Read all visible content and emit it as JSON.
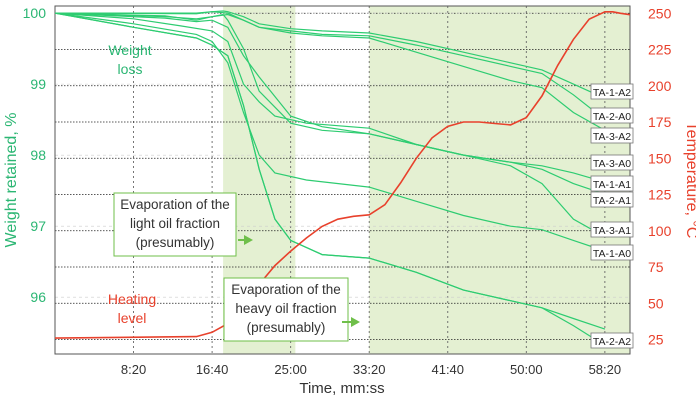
{
  "chart_data": {
    "type": "line",
    "xlabel": "Time, mm:ss",
    "ylabel_left": "Weight retained, %",
    "ylabel_right": "Temperature, °C",
    "xlim": [
      0,
      3660
    ],
    "ylim_left": [
      95.2,
      100.1
    ],
    "ylim_right": [
      15,
      255
    ],
    "x_ticks": [
      {
        "value": 500,
        "label": "8:20"
      },
      {
        "value": 1000,
        "label": "16:40"
      },
      {
        "value": 1500,
        "label": "25:00"
      },
      {
        "value": 2000,
        "label": "33:20"
      },
      {
        "value": 2500,
        "label": "41:40"
      },
      {
        "value": 3000,
        "label": "50:00"
      },
      {
        "value": 3500,
        "label": "58:20"
      }
    ],
    "y_left_ticks": [
      96,
      97,
      98,
      99,
      100
    ],
    "y_right_ticks": [
      25,
      50,
      75,
      100,
      125,
      150,
      175,
      200,
      225,
      250
    ],
    "shaded_regions": [
      [
        1070,
        1530
      ],
      [
        2000,
        3660
      ]
    ],
    "colors": {
      "weight": "#2ecc71",
      "temperature": "#e8412c",
      "shade": "#e4f0d2"
    },
    "temperature": {
      "x": [
        0,
        900,
        1000,
        1100,
        1200,
        1300,
        1400,
        1500,
        1600,
        1700,
        1800,
        1900,
        2000,
        2100,
        2200,
        2300,
        2400,
        2500,
        2600,
        2700,
        2800,
        2900,
        3000,
        3100,
        3200,
        3300,
        3400,
        3500,
        3550,
        3600,
        3660
      ],
      "y": [
        26,
        27,
        30,
        36,
        48,
        63,
        76,
        86,
        95,
        103,
        108,
        110,
        111,
        118,
        133,
        150,
        164,
        172,
        175,
        175,
        174,
        173,
        178,
        193,
        214,
        232,
        246,
        251,
        251,
        250,
        249
      ]
    },
    "series": [
      {
        "name": "TA-1-A2",
        "x": [
          0,
          900,
          1000,
          1070,
          1100,
          1200,
          1300,
          1500,
          1700,
          2000,
          2300,
          2600,
          2900,
          3100,
          3300,
          3500
        ],
        "y": [
          100,
          100,
          100.02,
          100.03,
          100.02,
          99.95,
          99.85,
          99.78,
          99.75,
          99.72,
          99.6,
          99.45,
          99.3,
          99.2,
          99.0,
          98.8
        ]
      },
      {
        "name": "TA-2-A0",
        "x": [
          0,
          700,
          900,
          1000,
          1100,
          1200,
          1300,
          1500,
          1700,
          2000,
          2300,
          2600,
          2900,
          3100,
          3300,
          3500
        ],
        "y": [
          100,
          99.95,
          99.92,
          99.95,
          99.98,
          99.9,
          99.8,
          99.75,
          99.7,
          99.68,
          99.55,
          99.4,
          99.25,
          99.15,
          98.85,
          98.5
        ]
      },
      {
        "name": "TA-3-A2",
        "x": [
          0,
          900,
          1000,
          1100,
          1200,
          1300,
          1500,
          1700,
          2000,
          2300,
          2600,
          2900,
          3100,
          3300,
          3500
        ],
        "y": [
          100,
          99.99,
          100.02,
          100.0,
          99.9,
          99.8,
          99.72,
          99.68,
          99.65,
          99.45,
          99.25,
          99.05,
          98.95,
          98.6,
          98.35
        ]
      },
      {
        "name": "TA-3-A0",
        "x": [
          0,
          500,
          800,
          1000,
          1100,
          1200,
          1300,
          1400,
          1600,
          2000,
          2300,
          2600,
          2900,
          3100,
          3300,
          3500
        ],
        "y": [
          100,
          99.92,
          99.82,
          99.75,
          99.6,
          99.0,
          98.75,
          98.55,
          98.45,
          98.38,
          98.15,
          98.0,
          97.9,
          97.85,
          97.75,
          97.62
        ]
      },
      {
        "name": "TA-1-A1",
        "x": [
          0,
          700,
          900,
          1000,
          1100,
          1200,
          1300,
          1500,
          1700,
          2000,
          2300,
          2600,
          2900,
          3100,
          3300,
          3500
        ],
        "y": [
          100,
          99.93,
          99.88,
          99.9,
          99.8,
          99.4,
          99.1,
          98.55,
          98.4,
          98.3,
          98.15,
          98.0,
          97.9,
          97.8,
          97.6,
          97.45
        ]
      },
      {
        "name": "TA-2-A1",
        "x": [
          0,
          700,
          900,
          1000,
          1070,
          1100,
          1200,
          1300,
          1500,
          1700,
          2000,
          2300,
          2600,
          2900,
          3100,
          3300,
          3500
        ],
        "y": [
          100,
          99.96,
          99.9,
          99.95,
          99.98,
          99.9,
          99.5,
          98.9,
          98.45,
          98.35,
          98.3,
          98.15,
          98.0,
          97.85,
          97.6,
          97.1,
          96.85
        ]
      },
      {
        "name": "TA-3-A1",
        "x": [
          0,
          500,
          900,
          1000,
          1100,
          1200,
          1300,
          1400,
          1600,
          2000,
          2300,
          2600,
          2900,
          3100,
          3300,
          3500
        ],
        "y": [
          100,
          99.85,
          99.7,
          99.6,
          99.3,
          98.6,
          98.0,
          97.75,
          97.65,
          97.55,
          97.35,
          97.15,
          97.0,
          96.95,
          96.8,
          96.65
        ]
      },
      {
        "name": "TA-1-A0",
        "x": [
          0,
          500,
          900,
          1000,
          1100,
          1200,
          1300,
          1400,
          1500,
          1700,
          2000,
          2300,
          2600,
          2900,
          3100,
          3300,
          3500
        ],
        "y": [
          100,
          99.8,
          99.65,
          99.55,
          99.4,
          98.7,
          97.8,
          97.1,
          96.8,
          96.6,
          96.55,
          96.35,
          96.1,
          95.95,
          95.85,
          95.7,
          95.55
        ]
      },
      {
        "name": "TA-2-A2",
        "x": [
          0,
          500,
          900,
          1000,
          1100,
          1200,
          1300,
          1400,
          1500,
          1700,
          2000,
          2300,
          2600,
          2900,
          3100,
          3300,
          3500
        ],
        "y": [
          100,
          99.8,
          99.65,
          99.55,
          99.4,
          98.7,
          97.8,
          97.1,
          96.8,
          96.6,
          96.55,
          96.35,
          96.1,
          95.95,
          95.85,
          95.6,
          95.32
        ]
      }
    ],
    "annotations": {
      "weight_loss": [
        "Weight",
        "loss"
      ],
      "heating_level": [
        "Heating",
        "level"
      ],
      "light_oil": [
        "Evaporation of the",
        "light oil fraction",
        "(presumably)"
      ],
      "heavy_oil": [
        "Evaporation of the",
        "heavy oil fraction",
        "(presumably)"
      ]
    },
    "grid": true
  }
}
